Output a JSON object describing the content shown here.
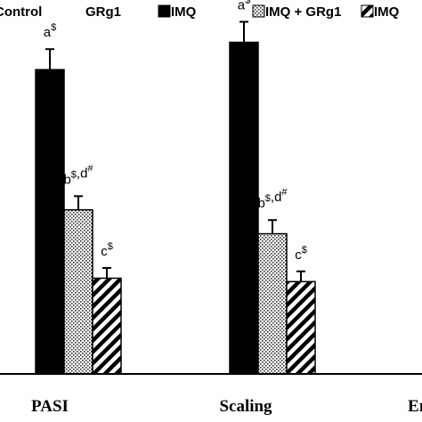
{
  "chart_data": {
    "type": "bar",
    "title": "",
    "xlabel": "",
    "ylabel": "",
    "ylim": [
      0,
      100
    ],
    "grid": false,
    "legend_placement": "top",
    "categories": [
      "PASI",
      "Scaling",
      "Ery"
    ],
    "series": [
      {
        "name": "Control",
        "fill": "none",
        "values": [
          0,
          0,
          0
        ],
        "errors": [
          0,
          0,
          0
        ],
        "labels": [
          "",
          "",
          ""
        ]
      },
      {
        "name": "GRg1",
        "fill": "none",
        "values": [
          0,
          0,
          0
        ],
        "errors": [
          0,
          0,
          0
        ],
        "labels": [
          "",
          "",
          ""
        ]
      },
      {
        "name": "IMQ",
        "fill": "solid",
        "values": [
          89,
          97,
          null
        ],
        "errors": [
          6,
          6,
          null
        ],
        "labels": [
          "a$",
          "a$",
          ""
        ]
      },
      {
        "name": "IMQ + GRg1",
        "fill": "dots",
        "values": [
          48,
          41,
          null
        ],
        "errors": [
          4,
          4,
          null
        ],
        "labels": [
          "b$,d#",
          "b$,d#",
          ""
        ]
      },
      {
        "name": "IMQ",
        "fill": "hatch",
        "values": [
          28,
          27,
          null
        ],
        "errors": [
          3,
          3,
          null
        ],
        "labels": [
          "c$",
          "c$",
          ""
        ]
      }
    ]
  }
}
